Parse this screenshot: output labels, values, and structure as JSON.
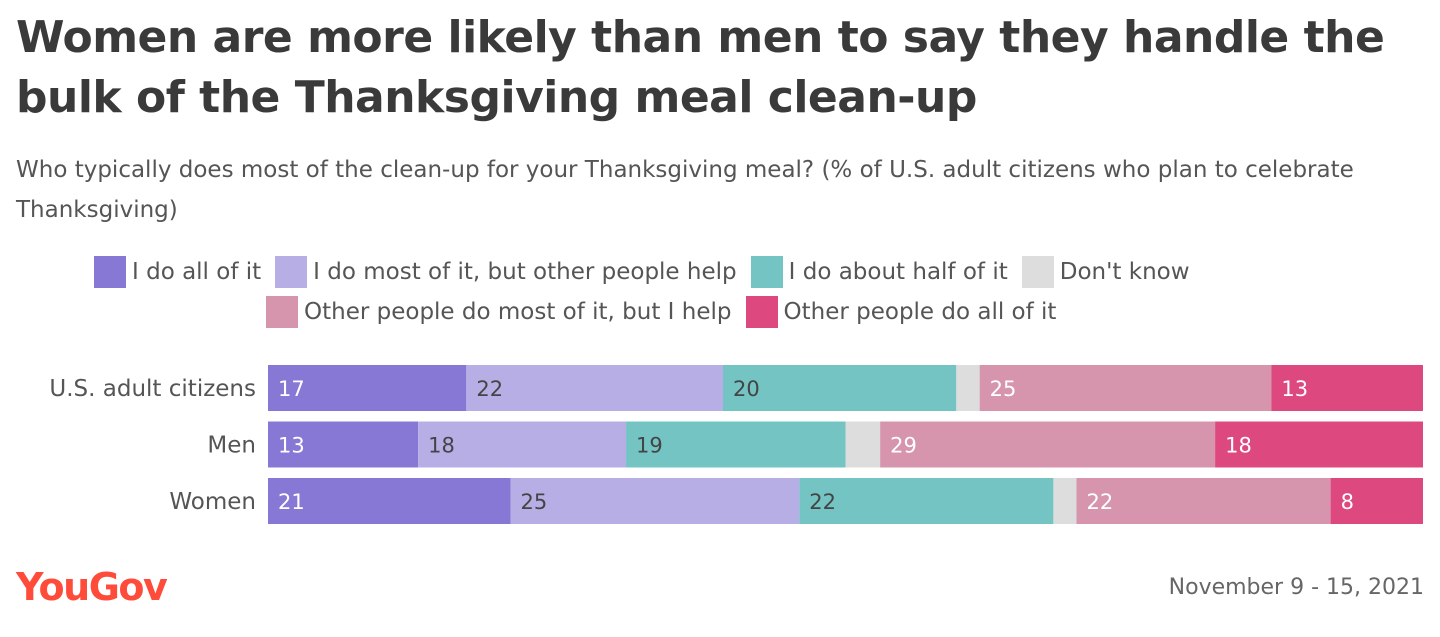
{
  "title": "Women are more likely than men to say they handle the bulk of the Thanksgiving meal clean-up",
  "subtitle": "Who typically does most of the clean-up for your Thanksgiving meal? (% of U.S. adult citizens who plan to celebrate Thanksgiving)",
  "logo_text": "YouGov",
  "date_range": "November 9 - 15, 2021",
  "chart_data": {
    "type": "bar",
    "orientation": "horizontal",
    "stacked": true,
    "normalized": true,
    "categories": [
      "U.S. adult citizens",
      "Men",
      "Women"
    ],
    "series": [
      {
        "name": "I do all of it",
        "color": "#8878d6",
        "label_color": "#ffffff",
        "values": [
          17,
          13,
          21
        ]
      },
      {
        "name": "I do most of it, but other people help",
        "color": "#b7aee6",
        "label_color": "#444444",
        "values": [
          22,
          18,
          25
        ]
      },
      {
        "name": "I do about half of it",
        "color": "#74c4c4",
        "label_color": "#444444",
        "values": [
          20,
          19,
          22
        ]
      },
      {
        "name": "Don't know",
        "color": "#dddddd",
        "label_color": "#444444",
        "values": [
          2,
          3,
          2
        ]
      },
      {
        "name": "Other people do most of it, but I help",
        "color": "#d695ad",
        "label_color": "#ffffff",
        "values": [
          25,
          29,
          22
        ]
      },
      {
        "name": "Other people do all of it",
        "color": "#dd497e",
        "label_color": "#ffffff",
        "values": [
          13,
          18,
          8
        ]
      }
    ],
    "shown_labels": [
      [
        "17",
        "22",
        "20",
        "",
        "25",
        "13"
      ],
      [
        "13",
        "18",
        "19",
        "",
        "29",
        "18"
      ],
      [
        "21",
        "25",
        "22",
        "",
        "22",
        "8"
      ]
    ],
    "legend_position": "top",
    "grid": false
  }
}
